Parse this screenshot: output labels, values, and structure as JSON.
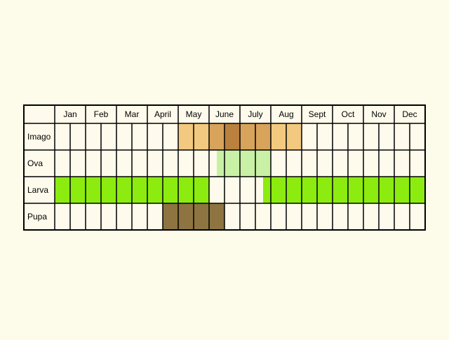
{
  "chart_data": {
    "type": "table",
    "months": [
      "Jan",
      "Feb",
      "Mar",
      "April",
      "May",
      "June",
      "July",
      "Aug",
      "Sept",
      "Oct",
      "Nov",
      "Dec"
    ],
    "stages": [
      {
        "label": "Imago",
        "periods": [
          {
            "from_week": 8,
            "to_week": 16,
            "color": "#f2c97e"
          },
          {
            "from_week": 10,
            "to_week": 14,
            "color": "#d8a35a"
          },
          {
            "from_week": 11,
            "to_week": 12,
            "color": "#b9803e"
          }
        ]
      },
      {
        "label": "Ova",
        "periods": [
          {
            "from_week": 10.5,
            "to_week": 14,
            "color": "#c8f1a6"
          }
        ]
      },
      {
        "label": "Larva",
        "periods": [
          {
            "from_week": 0,
            "to_week": 10,
            "color": "#8cec0f"
          },
          {
            "from_week": 13.5,
            "to_week": 24,
            "color": "#8cec0f"
          }
        ]
      },
      {
        "label": "Pupa",
        "periods": [
          {
            "from_week": 7,
            "to_week": 11,
            "color": "#8d7440"
          }
        ]
      }
    ],
    "colors": {
      "background": "#fdfbea",
      "cell": "#fefbec",
      "grid": "#000000"
    }
  }
}
